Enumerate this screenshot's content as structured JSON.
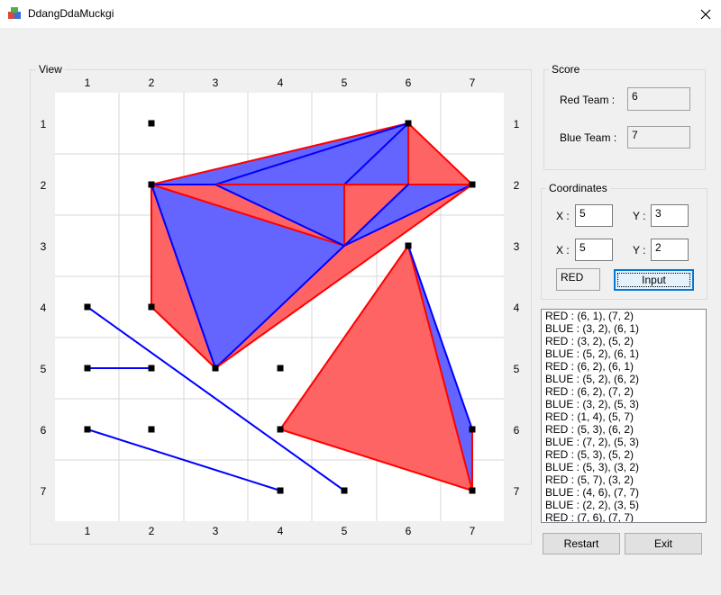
{
  "window": {
    "title": "DdangDdaMuckgi"
  },
  "view": {
    "title": "View",
    "col_labels": [
      "1",
      "2",
      "3",
      "4",
      "5",
      "6",
      "7"
    ],
    "row_labels": [
      "1",
      "2",
      "3",
      "4",
      "5",
      "6",
      "7"
    ],
    "points": [
      [
        2,
        1
      ],
      [
        6,
        1
      ],
      [
        2,
        2
      ],
      [
        7,
        2
      ],
      [
        6,
        3
      ],
      [
        1,
        4
      ],
      [
        2,
        4
      ],
      [
        1,
        5
      ],
      [
        2,
        5
      ],
      [
        3,
        5
      ],
      [
        4,
        5
      ],
      [
        1,
        6
      ],
      [
        2,
        6
      ],
      [
        4,
        6
      ],
      [
        7,
        6
      ],
      [
        4,
        7
      ],
      [
        5,
        7
      ],
      [
        7,
        7
      ]
    ],
    "triangles": [
      {
        "color": "#ff6464",
        "pts": [
          [
            2,
            2
          ],
          [
            6,
            1
          ],
          [
            5,
            3
          ]
        ]
      },
      {
        "color": "#6464ff",
        "pts": [
          [
            2,
            2
          ],
          [
            6,
            1
          ],
          [
            3,
            2
          ]
        ]
      },
      {
        "color": "#6464ff",
        "pts": [
          [
            3,
            2
          ],
          [
            6,
            1
          ],
          [
            5,
            3
          ]
        ]
      },
      {
        "color": "#ff6464",
        "pts": [
          [
            6,
            1
          ],
          [
            7,
            2
          ],
          [
            6,
            2
          ]
        ]
      },
      {
        "color": "#6464ff",
        "pts": [
          [
            6,
            1
          ],
          [
            6,
            2
          ],
          [
            5,
            2
          ]
        ]
      },
      {
        "color": "#ff6464",
        "pts": [
          [
            5,
            2
          ],
          [
            6,
            2
          ],
          [
            5,
            3
          ]
        ]
      },
      {
        "color": "#6464ff",
        "pts": [
          [
            6,
            2
          ],
          [
            7,
            2
          ],
          [
            5,
            3
          ]
        ]
      },
      {
        "color": "#ff6464",
        "pts": [
          [
            2,
            2
          ],
          [
            2,
            4
          ],
          [
            3,
            5
          ]
        ]
      },
      {
        "color": "#6464ff",
        "pts": [
          [
            2,
            2
          ],
          [
            3,
            5
          ],
          [
            5,
            3
          ]
        ]
      },
      {
        "color": "#ff6464",
        "pts": [
          [
            5,
            3
          ],
          [
            7,
            2
          ],
          [
            3,
            5
          ]
        ]
      },
      {
        "color": "#6464ff",
        "pts": [
          [
            6,
            3
          ],
          [
            7,
            7
          ],
          [
            7,
            6
          ]
        ]
      },
      {
        "color": "#ff6464",
        "pts": [
          [
            6,
            3
          ],
          [
            4,
            6
          ],
          [
            7,
            7
          ]
        ]
      }
    ],
    "lines": [
      {
        "color": "#ff0000",
        "from": [
          2,
          2
        ],
        "to": [
          6,
          1
        ]
      },
      {
        "color": "#0000ff",
        "from": [
          3,
          2
        ],
        "to": [
          6,
          1
        ]
      },
      {
        "color": "#0000ff",
        "from": [
          5,
          2
        ],
        "to": [
          6,
          1
        ]
      },
      {
        "color": "#ff0000",
        "from": [
          6,
          1
        ],
        "to": [
          7,
          2
        ]
      },
      {
        "color": "#ff0000",
        "from": [
          6,
          1
        ],
        "to": [
          6,
          2
        ]
      },
      {
        "color": "#ff0000",
        "from": [
          2,
          2
        ],
        "to": [
          7,
          2
        ]
      },
      {
        "color": "#0000ff",
        "from": [
          2,
          2
        ],
        "to": [
          3,
          2
        ]
      },
      {
        "color": "#ff0000",
        "from": [
          2,
          2
        ],
        "to": [
          5,
          3
        ]
      },
      {
        "color": "#0000ff",
        "from": [
          3,
          2
        ],
        "to": [
          5,
          3
        ]
      },
      {
        "color": "#ff0000",
        "from": [
          5,
          2
        ],
        "to": [
          5,
          3
        ]
      },
      {
        "color": "#0000ff",
        "from": [
          5,
          3
        ],
        "to": [
          7,
          2
        ]
      },
      {
        "color": "#0000ff",
        "from": [
          5,
          3
        ],
        "to": [
          6,
          2
        ]
      },
      {
        "color": "#ff0000",
        "from": [
          2,
          2
        ],
        "to": [
          2,
          4
        ]
      },
      {
        "color": "#0000ff",
        "from": [
          2,
          2
        ],
        "to": [
          3,
          5
        ]
      },
      {
        "color": "#ff0000",
        "from": [
          2,
          4
        ],
        "to": [
          3,
          5
        ]
      },
      {
        "color": "#0000ff",
        "from": [
          3,
          5
        ],
        "to": [
          5,
          3
        ]
      },
      {
        "color": "#ff0000",
        "from": [
          3,
          5
        ],
        "to": [
          7,
          2
        ]
      },
      {
        "color": "#ff0000",
        "from": [
          6,
          3
        ],
        "to": [
          4,
          6
        ]
      },
      {
        "color": "#ff0000",
        "from": [
          4,
          6
        ],
        "to": [
          7,
          7
        ]
      },
      {
        "color": "#ff0000",
        "from": [
          6,
          3
        ],
        "to": [
          7,
          7
        ]
      },
      {
        "color": "#0000ff",
        "from": [
          6,
          3
        ],
        "to": [
          7,
          6
        ]
      },
      {
        "color": "#ff0000",
        "from": [
          7,
          6
        ],
        "to": [
          7,
          7
        ]
      },
      {
        "color": "#0000ff",
        "from": [
          1,
          4
        ],
        "to": [
          5,
          7
        ]
      },
      {
        "color": "#0000ff",
        "from": [
          1,
          5
        ],
        "to": [
          2,
          5
        ]
      },
      {
        "color": "#0000ff",
        "from": [
          1,
          6
        ],
        "to": [
          4,
          7
        ]
      }
    ]
  },
  "score": {
    "title": "Score",
    "red_label": "Red Team :",
    "red_value": "6",
    "blue_label": "Blue Team :",
    "blue_value": "7"
  },
  "coordinates": {
    "title": "Coordinates",
    "x_label": "X :",
    "y_label": "Y :",
    "x1": "5",
    "y1": "3",
    "x2": "5",
    "y2": "2",
    "turn": "RED",
    "input_label": "Input"
  },
  "log": [
    "RED : (6, 1), (7, 2)",
    "BLUE : (3, 2), (6, 1)",
    "RED : (3, 2), (5, 2)",
    "BLUE : (5, 2), (6, 1)",
    "RED : (6, 2), (6, 1)",
    "BLUE : (5, 2), (6, 2)",
    "RED : (6, 2), (7, 2)",
    "BLUE : (3, 2), (5, 3)",
    "RED : (1, 4), (5, 7)",
    "RED : (5, 3), (6, 2)",
    "BLUE : (7, 2), (5, 3)",
    "RED : (5, 3), (5, 2)",
    "BLUE : (5, 3), (3, 2)",
    "RED : (5, 7), (3, 2)",
    "BLUE : (4, 6), (7, 7)",
    "BLUE : (2, 2), (3, 5)",
    "RED : (7, 6), (7, 7)"
  ],
  "buttons": {
    "restart": "Restart",
    "exit": "Exit"
  }
}
